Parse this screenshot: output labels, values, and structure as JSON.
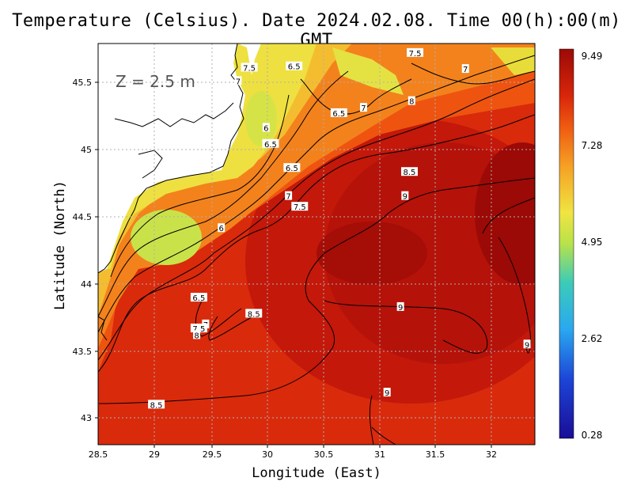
{
  "title": "Temperature (Celsius). Date 2024.02.08. Time 00(h):00(m) GMT",
  "depth_label": "Z = 2.5 m",
  "axes": {
    "xlabel": "Longitude (East)",
    "ylabel": "Latitude (North)",
    "x_ticks": [
      "28.5",
      "29",
      "29.5",
      "30",
      "30.5",
      "31",
      "31.5",
      "32"
    ],
    "y_ticks": [
      "45.5",
      "45",
      "44.5",
      "44",
      "43.5",
      "43"
    ]
  },
  "colorbar": {
    "ticks": [
      "9.49",
      "7.28",
      "4.95",
      "2.62",
      "0.28"
    ],
    "colors": [
      "#9b0a06",
      "#d8260a",
      "#ef5a12",
      "#f5a024",
      "#f0e442",
      "#b8e24a",
      "#3ccbb8",
      "#2aa8f0",
      "#1c44d6",
      "#1a0d96"
    ]
  },
  "chart_data": {
    "type": "heatmap",
    "title": "Temperature (Celsius). Date 2024.02.08. Time 00(h):00(m) GMT",
    "xlabel": "Longitude (East)",
    "ylabel": "Latitude (North)",
    "xlim": [
      28.5,
      32.4
    ],
    "ylim": [
      42.8,
      45.8
    ],
    "value_range": [
      0.28,
      9.49
    ],
    "grid": true,
    "contour_labels": [
      {
        "lon": 29.85,
        "lat": 45.62,
        "text": "7.5"
      },
      {
        "lon": 29.75,
        "lat": 45.52,
        "text": "7"
      },
      {
        "lon": 30.25,
        "lat": 45.63,
        "text": "6.5"
      },
      {
        "lon": 31.33,
        "lat": 45.73,
        "text": "7.5"
      },
      {
        "lon": 31.78,
        "lat": 45.61,
        "text": "7"
      },
      {
        "lon": 30.65,
        "lat": 45.28,
        "text": "6.5"
      },
      {
        "lon": 30.87,
        "lat": 45.32,
        "text": "7"
      },
      {
        "lon": 31.3,
        "lat": 45.37,
        "text": "8"
      },
      {
        "lon": 30.0,
        "lat": 45.17,
        "text": "6"
      },
      {
        "lon": 30.04,
        "lat": 45.05,
        "text": "6.5"
      },
      {
        "lon": 30.23,
        "lat": 44.87,
        "text": "6.5"
      },
      {
        "lon": 31.28,
        "lat": 44.84,
        "text": "8.5"
      },
      {
        "lon": 30.2,
        "lat": 44.66,
        "text": "7"
      },
      {
        "lon": 30.3,
        "lat": 44.58,
        "text": "7.5"
      },
      {
        "lon": 31.24,
        "lat": 44.66,
        "text": "9"
      },
      {
        "lon": 29.6,
        "lat": 44.42,
        "text": "6"
      },
      {
        "lon": 29.4,
        "lat": 43.9,
        "text": "6.5"
      },
      {
        "lon": 29.46,
        "lat": 43.7,
        "text": "7"
      },
      {
        "lon": 29.4,
        "lat": 43.67,
        "text": "7.5"
      },
      {
        "lon": 29.38,
        "lat": 43.62,
        "text": "8"
      },
      {
        "lon": 29.89,
        "lat": 43.78,
        "text": "8.5"
      },
      {
        "lon": 31.2,
        "lat": 43.83,
        "text": "9"
      },
      {
        "lon": 32.33,
        "lat": 43.55,
        "text": "9"
      },
      {
        "lon": 31.08,
        "lat": 43.19,
        "text": "9"
      },
      {
        "lon": 29.02,
        "lat": 43.1,
        "text": "8.5"
      }
    ]
  }
}
